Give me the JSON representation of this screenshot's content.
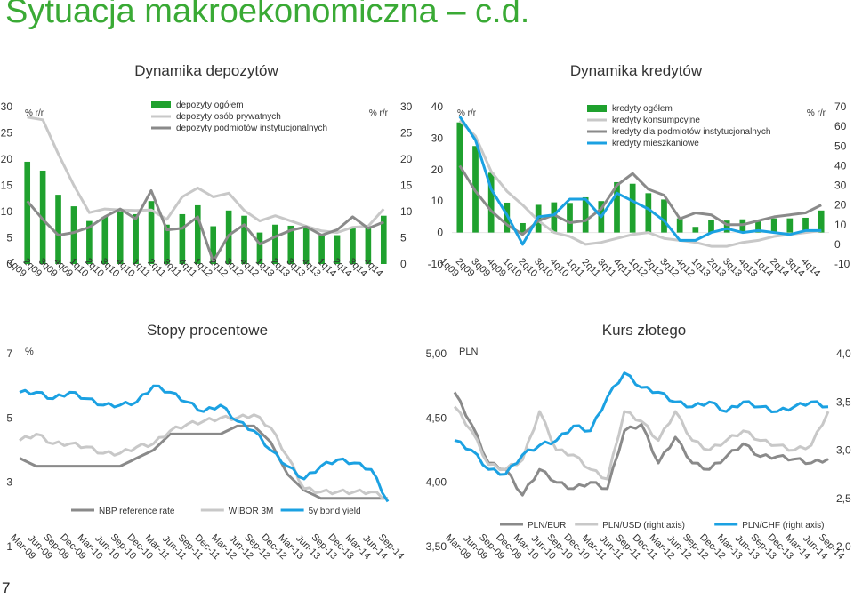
{
  "page": {
    "title": "Sytuacja makroekonomiczna – c.d.",
    "page_number": "7"
  },
  "colors": {
    "green": "#1fa12e",
    "lightgray": "#c8c8c8",
    "darkgray": "#8a8a8a",
    "blue": "#1ba1e2",
    "title": "#3aaa35"
  },
  "chart_data": [
    {
      "id": "deposits",
      "type": "bar",
      "title": "Dynamika depozytów",
      "unit_left": "% r/r",
      "unit_right": "% r/r",
      "ylim": [
        0,
        30
      ],
      "yticks": [
        0,
        5,
        10,
        15,
        20,
        25,
        30
      ],
      "categories": [
        "1q09",
        "",
        "2q09",
        "",
        "3q09",
        "",
        "4q09",
        "",
        "1q10",
        "",
        "2q10",
        "",
        "3q10",
        "",
        "4q10",
        "",
        "1q11",
        "",
        "2q11",
        "",
        "3q11",
        "",
        "4q11",
        "",
        "1q12",
        "",
        "2q12",
        "",
        "3q12",
        "",
        "4q12",
        "",
        "1q13",
        "",
        "2q13",
        "",
        "3q13",
        "",
        "4q13",
        "",
        "1q14",
        "",
        "2q14",
        "",
        "3q14",
        "",
        "4q14"
      ],
      "bars": {
        "name": "depozyty ogółem",
        "values": [
          19.5,
          17.8,
          13.2,
          11,
          8.2,
          9,
          10.5,
          9.5,
          12,
          7.5,
          9.5,
          11.2,
          7.2,
          10.2,
          9.2,
          6,
          7.5,
          7.3,
          7,
          5.5,
          5.5,
          7,
          7,
          9.2
        ]
      },
      "lines": [
        {
          "name": "depozyty osób prywatnych",
          "style": "light",
          "values": [
            28,
            27.5,
            21,
            15,
            9.8,
            10.5,
            10.3,
            10.2,
            10.3,
            8.5,
            12.8,
            14.5,
            12.8,
            13.5,
            10.2,
            8.2,
            9.2,
            8.2,
            7.2,
            6.3,
            6,
            7,
            7.2,
            10.5
          ]
        },
        {
          "name": "depozyty podmiotów instytucjonalnych",
          "style": "dark",
          "values": [
            12,
            8.5,
            5.5,
            6,
            7,
            9,
            10.5,
            8.6,
            14,
            6.5,
            6.8,
            9,
            0.5,
            5.5,
            7.5,
            3.8,
            5.2,
            6.4,
            7.1,
            5.5,
            6.5,
            9,
            6.8,
            8
          ]
        }
      ],
      "legend": [
        "depozyty ogółem",
        "depozyty osób prywatnych",
        "depozyty podmiotów instytucjonalnych"
      ]
    },
    {
      "id": "credits",
      "type": "bar",
      "title": "Dynamika kredytów",
      "unit_left": "% r/r",
      "unit_right": "% r/r",
      "ylim_left": [
        -10,
        40
      ],
      "yticks_left": [
        -10,
        0,
        10,
        20,
        30,
        40
      ],
      "ylim_right": [
        -10,
        70
      ],
      "yticks_right": [
        -10,
        0,
        10,
        20,
        30,
        40,
        50,
        60,
        70
      ],
      "categories": [
        "1q09",
        "",
        "2q09",
        "",
        "3q09",
        "",
        "4q09",
        "",
        "1q10",
        "",
        "2q10",
        "",
        "3q10",
        "",
        "4q10",
        "",
        "1q11",
        "",
        "2q11",
        "",
        "3q11",
        "",
        "4q11",
        "",
        "1q12",
        "",
        "2q12",
        "",
        "3q12",
        "",
        "4q12",
        "",
        "1q13",
        "",
        "2q13",
        "",
        "3q13",
        "",
        "4q13",
        "",
        "1q14",
        "",
        "2q14",
        "",
        "3q14",
        "",
        "4q14"
      ],
      "bars": {
        "name": "kredyty ogółem",
        "values": [
          35,
          27.5,
          19,
          9.5,
          3,
          8.8,
          9.6,
          9.4,
          11.2,
          10,
          16,
          15.5,
          12.5,
          10.5,
          4.5,
          1.8,
          4,
          3.8,
          4.2,
          4,
          4.5,
          4.5,
          4.7,
          7
        ]
      },
      "lines": [
        {
          "name": "kredyty konsumpcyjne",
          "style": "light",
          "axis": "right",
          "values": [
            63,
            55,
            37,
            27,
            20,
            12,
            6,
            4,
            0,
            1,
            3,
            5,
            6,
            3,
            2,
            1,
            -1,
            -1,
            1,
            2,
            4,
            5,
            6,
            7
          ]
        },
        {
          "name": "kredyty dla podmiotów instytucjonalnych",
          "style": "dark",
          "axis": "right",
          "values": [
            40,
            27,
            17,
            10,
            5,
            12,
            15,
            11,
            12,
            18,
            30,
            36,
            28,
            25,
            13,
            16,
            15,
            10,
            10,
            12,
            14,
            15,
            16,
            20
          ]
        },
        {
          "name": "kredyty mieszkaniowe",
          "style": "blue",
          "axis": "right",
          "values": [
            65,
            53,
            28,
            15,
            0,
            14,
            15,
            23,
            23,
            14,
            26,
            22,
            18,
            12,
            2,
            2,
            6,
            8,
            6,
            7,
            6,
            5,
            7,
            7
          ]
        }
      ],
      "legend": [
        "kredyty ogółem",
        "kredyty konsumpcyjne",
        "kredyty dla podmiotów instytucjonalnych",
        "kredyty mieszkaniowe"
      ]
    },
    {
      "id": "rates",
      "type": "line",
      "title": "Stopy procentowe",
      "unit_left": "%",
      "ylim": [
        1,
        7
      ],
      "yticks": [
        1,
        3,
        5,
        7
      ],
      "x": [
        "Mar-09",
        "Jun-09",
        "Sep-09",
        "Dec-09",
        "Mar-10",
        "Jun-10",
        "Sep-10",
        "Dec-10",
        "Mar-11",
        "Jun-11",
        "Sep-11",
        "Dec-11",
        "Mar-12",
        "Jun-12",
        "Sep-12",
        "Dec-12",
        "Mar-13",
        "Jun-13",
        "Sep-13",
        "Dec-13",
        "Mar-14",
        "Jun-14",
        "Sep-14"
      ],
      "series": [
        {
          "name": "NBP reference rate",
          "style": "dark",
          "values": [
            3.75,
            3.5,
            3.5,
            3.5,
            3.5,
            3.5,
            3.5,
            3.75,
            4,
            4.5,
            4.5,
            4.5,
            4.5,
            4.75,
            4.75,
            4.25,
            3.25,
            2.75,
            2.5,
            2.5,
            2.5,
            2.5,
            2.5
          ]
        },
        {
          "name": "WIBOR 3M",
          "style": "light",
          "values": [
            4.3,
            4.5,
            4.2,
            4.2,
            4.1,
            3.9,
            3.9,
            4.1,
            4.2,
            4.6,
            4.8,
            4.9,
            5,
            5,
            5.1,
            4.7,
            3.8,
            2.8,
            2.7,
            2.7,
            2.7,
            2.7,
            2.5
          ]
        },
        {
          "name": "5y bond yield",
          "style": "blue",
          "values": [
            5.8,
            5.8,
            5.6,
            5.8,
            5.6,
            5.4,
            5.4,
            5.5,
            6,
            5.8,
            5.5,
            5.2,
            5.4,
            4.9,
            4.6,
            4,
            3.5,
            3.1,
            3.5,
            3.7,
            3.6,
            3.4,
            2.4
          ]
        }
      ],
      "legend": [
        "NBP reference rate",
        "WIBOR 3M",
        "5y bond yield"
      ]
    },
    {
      "id": "fx",
      "type": "line",
      "title": "Kurs złotego",
      "unit_left": "PLN",
      "ylim_left": [
        3.5,
        5.0
      ],
      "yticks_left": [
        "3,50",
        "4,00",
        "4,50",
        "5,00"
      ],
      "ylim_right": [
        2.0,
        4.0
      ],
      "yticks_right": [
        "2,0",
        "2,5",
        "3,0",
        "3,5",
        "4,0"
      ],
      "x": [
        "Mar-09",
        "Jun-09",
        "Sep-09",
        "Dec-09",
        "Mar-10",
        "Jun-10",
        "Sep-10",
        "Dec-10",
        "Mar-11",
        "Jun-11",
        "Sep-11",
        "Dec-11",
        "Mar-12",
        "Jun-12",
        "Sep-12",
        "Dec-12",
        "Mar-13",
        "Jun-13",
        "Sep-13",
        "Dec-13",
        "Mar-14",
        "Jun-14",
        "Sep-14"
      ],
      "series": [
        {
          "name": "PLN/EUR",
          "style": "dark",
          "axis": "left",
          "values": [
            4.7,
            4.45,
            4.15,
            4.1,
            3.9,
            4.1,
            4,
            3.95,
            4.0,
            3.95,
            4.4,
            4.45,
            4.15,
            4.35,
            4.15,
            4.1,
            4.2,
            4.3,
            4.2,
            4.2,
            4.18,
            4.15,
            4.18
          ]
        },
        {
          "name": "PLN/USD (right axis)",
          "style": "light",
          "axis": "right",
          "values": [
            3.45,
            3.2,
            2.85,
            2.8,
            2.9,
            3.4,
            3.0,
            2.95,
            2.8,
            2.7,
            3.4,
            3.3,
            3.1,
            3.4,
            3.1,
            3.0,
            3.1,
            3.2,
            3.1,
            3.05,
            3.0,
            3.05,
            3.4
          ]
        },
        {
          "name": "PLN/CHF (right axis)",
          "style": "blue",
          "axis": "right",
          "values": [
            3.1,
            3.0,
            2.8,
            2.75,
            2.95,
            3.05,
            3.1,
            3.25,
            3.2,
            3.55,
            3.8,
            3.65,
            3.6,
            3.5,
            3.45,
            3.5,
            3.4,
            3.5,
            3.45,
            3.4,
            3.45,
            3.5,
            3.45
          ]
        }
      ],
      "legend": [
        "PLN/EUR",
        "PLN/USD (right axis)",
        "PLN/CHF (right axis)"
      ]
    }
  ]
}
